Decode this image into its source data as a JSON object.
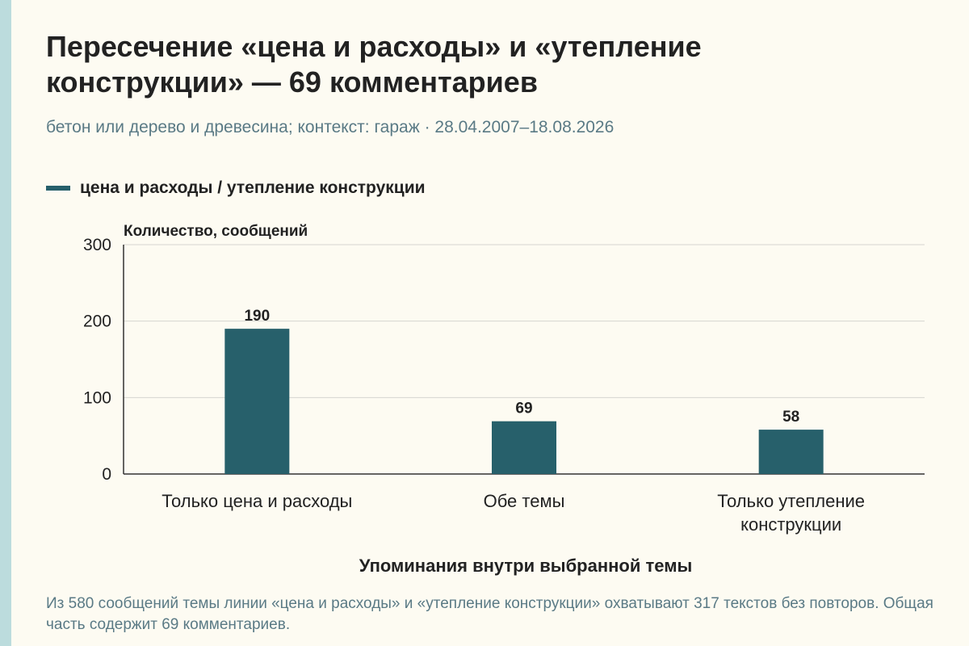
{
  "header": {
    "title": "Пересечение «цена и расходы» и «утепление конструкции» — 69 комментариев",
    "subtitle": "бетон или дерево и древесина; контекст: гараж · 28.04.2007–18.08.2026"
  },
  "legend": {
    "label": "цена и расходы / утепление конструкции"
  },
  "note": "Из 580 сообщений темы линии «цена и расходы» и «утепление конструкции» охватывают 317 текстов без повторов. Общая часть содержит 69 комментариев.",
  "colors": {
    "bar": "#27606b",
    "accent_strip": "#bcdcdd",
    "background": "#fdfbf2"
  },
  "chart_data": {
    "type": "bar",
    "categories": [
      [
        "Только цена и расходы"
      ],
      [
        "Обе темы"
      ],
      [
        "Только утепление",
        "конструкции"
      ]
    ],
    "series": [
      {
        "name": "цена и расходы / утепление конструкции",
        "values": [
          190,
          69,
          58
        ]
      }
    ],
    "ylabel": "Количество, сообщений",
    "xlabel": "Упоминания внутри выбранной темы",
    "ylim": [
      0,
      300
    ],
    "yticks": [
      0,
      100,
      200,
      300
    ],
    "grid": true,
    "legend_position": "top-left"
  }
}
